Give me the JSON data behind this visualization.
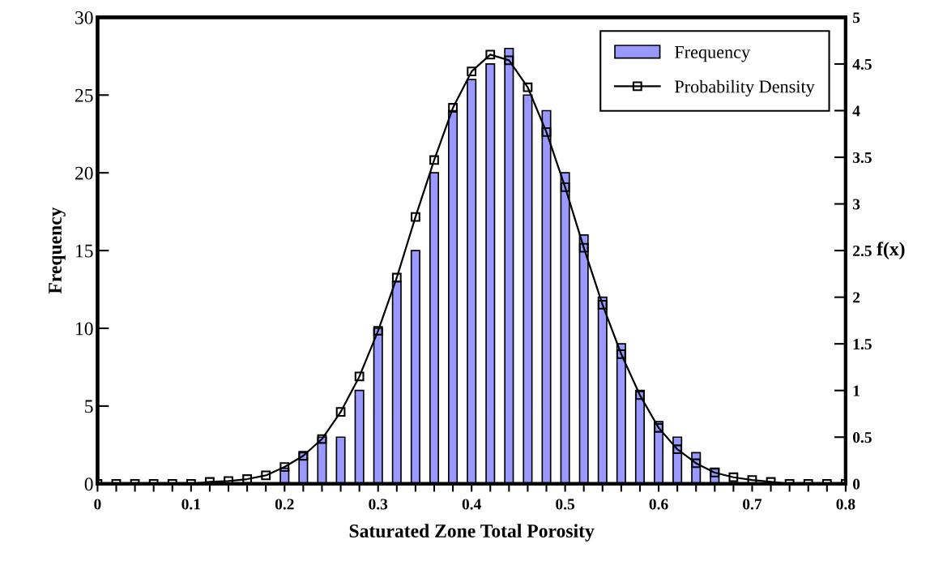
{
  "chart_data": {
    "type": "line",
    "xlabel": "Saturated Zone Total Porosity",
    "ylabel": "Frequency",
    "y2label": "f(x)",
    "series": [
      {
        "name": "Frequency",
        "type": "bar",
        "color": "#9999ff",
        "x": [
          0.2,
          0.22,
          0.24,
          0.26,
          0.28,
          0.3,
          0.32,
          0.34,
          0.36,
          0.38,
          0.4,
          0.42,
          0.44,
          0.46,
          0.48,
          0.5,
          0.52,
          0.54,
          0.56,
          0.58,
          0.6,
          0.62,
          0.64,
          0.66
        ],
        "values": [
          1,
          2,
          3,
          3,
          6,
          10,
          13,
          15,
          20,
          24,
          26,
          27,
          28,
          25,
          24,
          20,
          16,
          12,
          9,
          6,
          4,
          3,
          2,
          1
        ]
      },
      {
        "name": "Probability Density",
        "axis": "y2",
        "color": "#000000",
        "marker": "square",
        "line_style": "solid",
        "x": [
          0,
          0.02,
          0.04,
          0.06,
          0.08,
          0.1,
          0.12,
          0.14,
          0.16,
          0.18,
          0.2,
          0.22,
          0.24,
          0.26,
          0.28,
          0.3,
          0.32,
          0.34,
          0.36,
          0.38,
          0.4,
          0.42,
          0.44,
          0.46,
          0.48,
          0.5,
          0.52,
          0.54,
          0.56,
          0.58,
          0.6,
          0.62,
          0.64,
          0.66,
          0.68,
          0.7,
          0.72,
          0.74,
          0.76,
          0.78,
          0.8
        ],
        "values": [
          0,
          0,
          0,
          0,
          0,
          0,
          0.02,
          0.03,
          0.05,
          0.09,
          0.18,
          0.3,
          0.48,
          0.77,
          1.15,
          1.64,
          2.21,
          2.86,
          3.47,
          4.03,
          4.42,
          4.6,
          4.54,
          4.25,
          3.77,
          3.18,
          2.53,
          1.92,
          1.39,
          0.95,
          0.6,
          0.37,
          0.22,
          0.12,
          0.07,
          0.04,
          0.02,
          0,
          0,
          0,
          0
        ]
      }
    ],
    "xlim": [
      0,
      0.8
    ],
    "xticks": [
      0,
      {
        "value": 0.02,
        "label": null
      },
      {
        "value": 0.04,
        "label": null
      },
      {
        "value": 0.06,
        "label": null
      },
      {
        "value": 0.08,
        "label": null
      },
      0.1,
      {
        "value": 0.12,
        "label": null
      },
      {
        "value": 0.14,
        "label": null
      },
      {
        "value": 0.16,
        "label": null
      },
      {
        "value": 0.18,
        "label": null
      },
      0.2,
      {
        "value": 0.22,
        "label": null
      },
      {
        "value": 0.24,
        "label": null
      },
      {
        "value": 0.26,
        "label": null
      },
      {
        "value": 0.28,
        "label": null
      },
      0.3,
      {
        "value": 0.32,
        "label": null
      },
      {
        "value": 0.34,
        "label": null
      },
      {
        "value": 0.36,
        "label": null
      },
      {
        "value": 0.38,
        "label": null
      },
      0.4,
      {
        "value": 0.42,
        "label": null
      },
      {
        "value": 0.44,
        "label": null
      },
      {
        "value": 0.46,
        "label": null
      },
      {
        "value": 0.48,
        "label": null
      },
      0.5,
      {
        "value": 0.52,
        "label": null
      },
      {
        "value": 0.54,
        "label": null
      },
      {
        "value": 0.56,
        "label": null
      },
      {
        "value": 0.58,
        "label": null
      },
      0.6,
      {
        "value": 0.62,
        "label": null
      },
      {
        "value": 0.64,
        "label": null
      },
      {
        "value": 0.66,
        "label": null
      },
      {
        "value": 0.68,
        "label": null
      },
      0.7,
      {
        "value": 0.72,
        "label": null
      },
      {
        "value": 0.74,
        "label": null
      },
      {
        "value": 0.76,
        "label": null
      },
      {
        "value": 0.78,
        "label": null
      },
      0.8
    ],
    "ylim": [
      0,
      30
    ],
    "yticks": [
      0,
      5,
      10,
      15,
      20,
      25,
      30
    ],
    "y2lim": [
      0,
      5
    ],
    "y2ticks": [
      0,
      0.5,
      1,
      1.5,
      2,
      2.5,
      3,
      3.5,
      4,
      4.5,
      5
    ],
    "grid": false,
    "legend": "top right"
  }
}
